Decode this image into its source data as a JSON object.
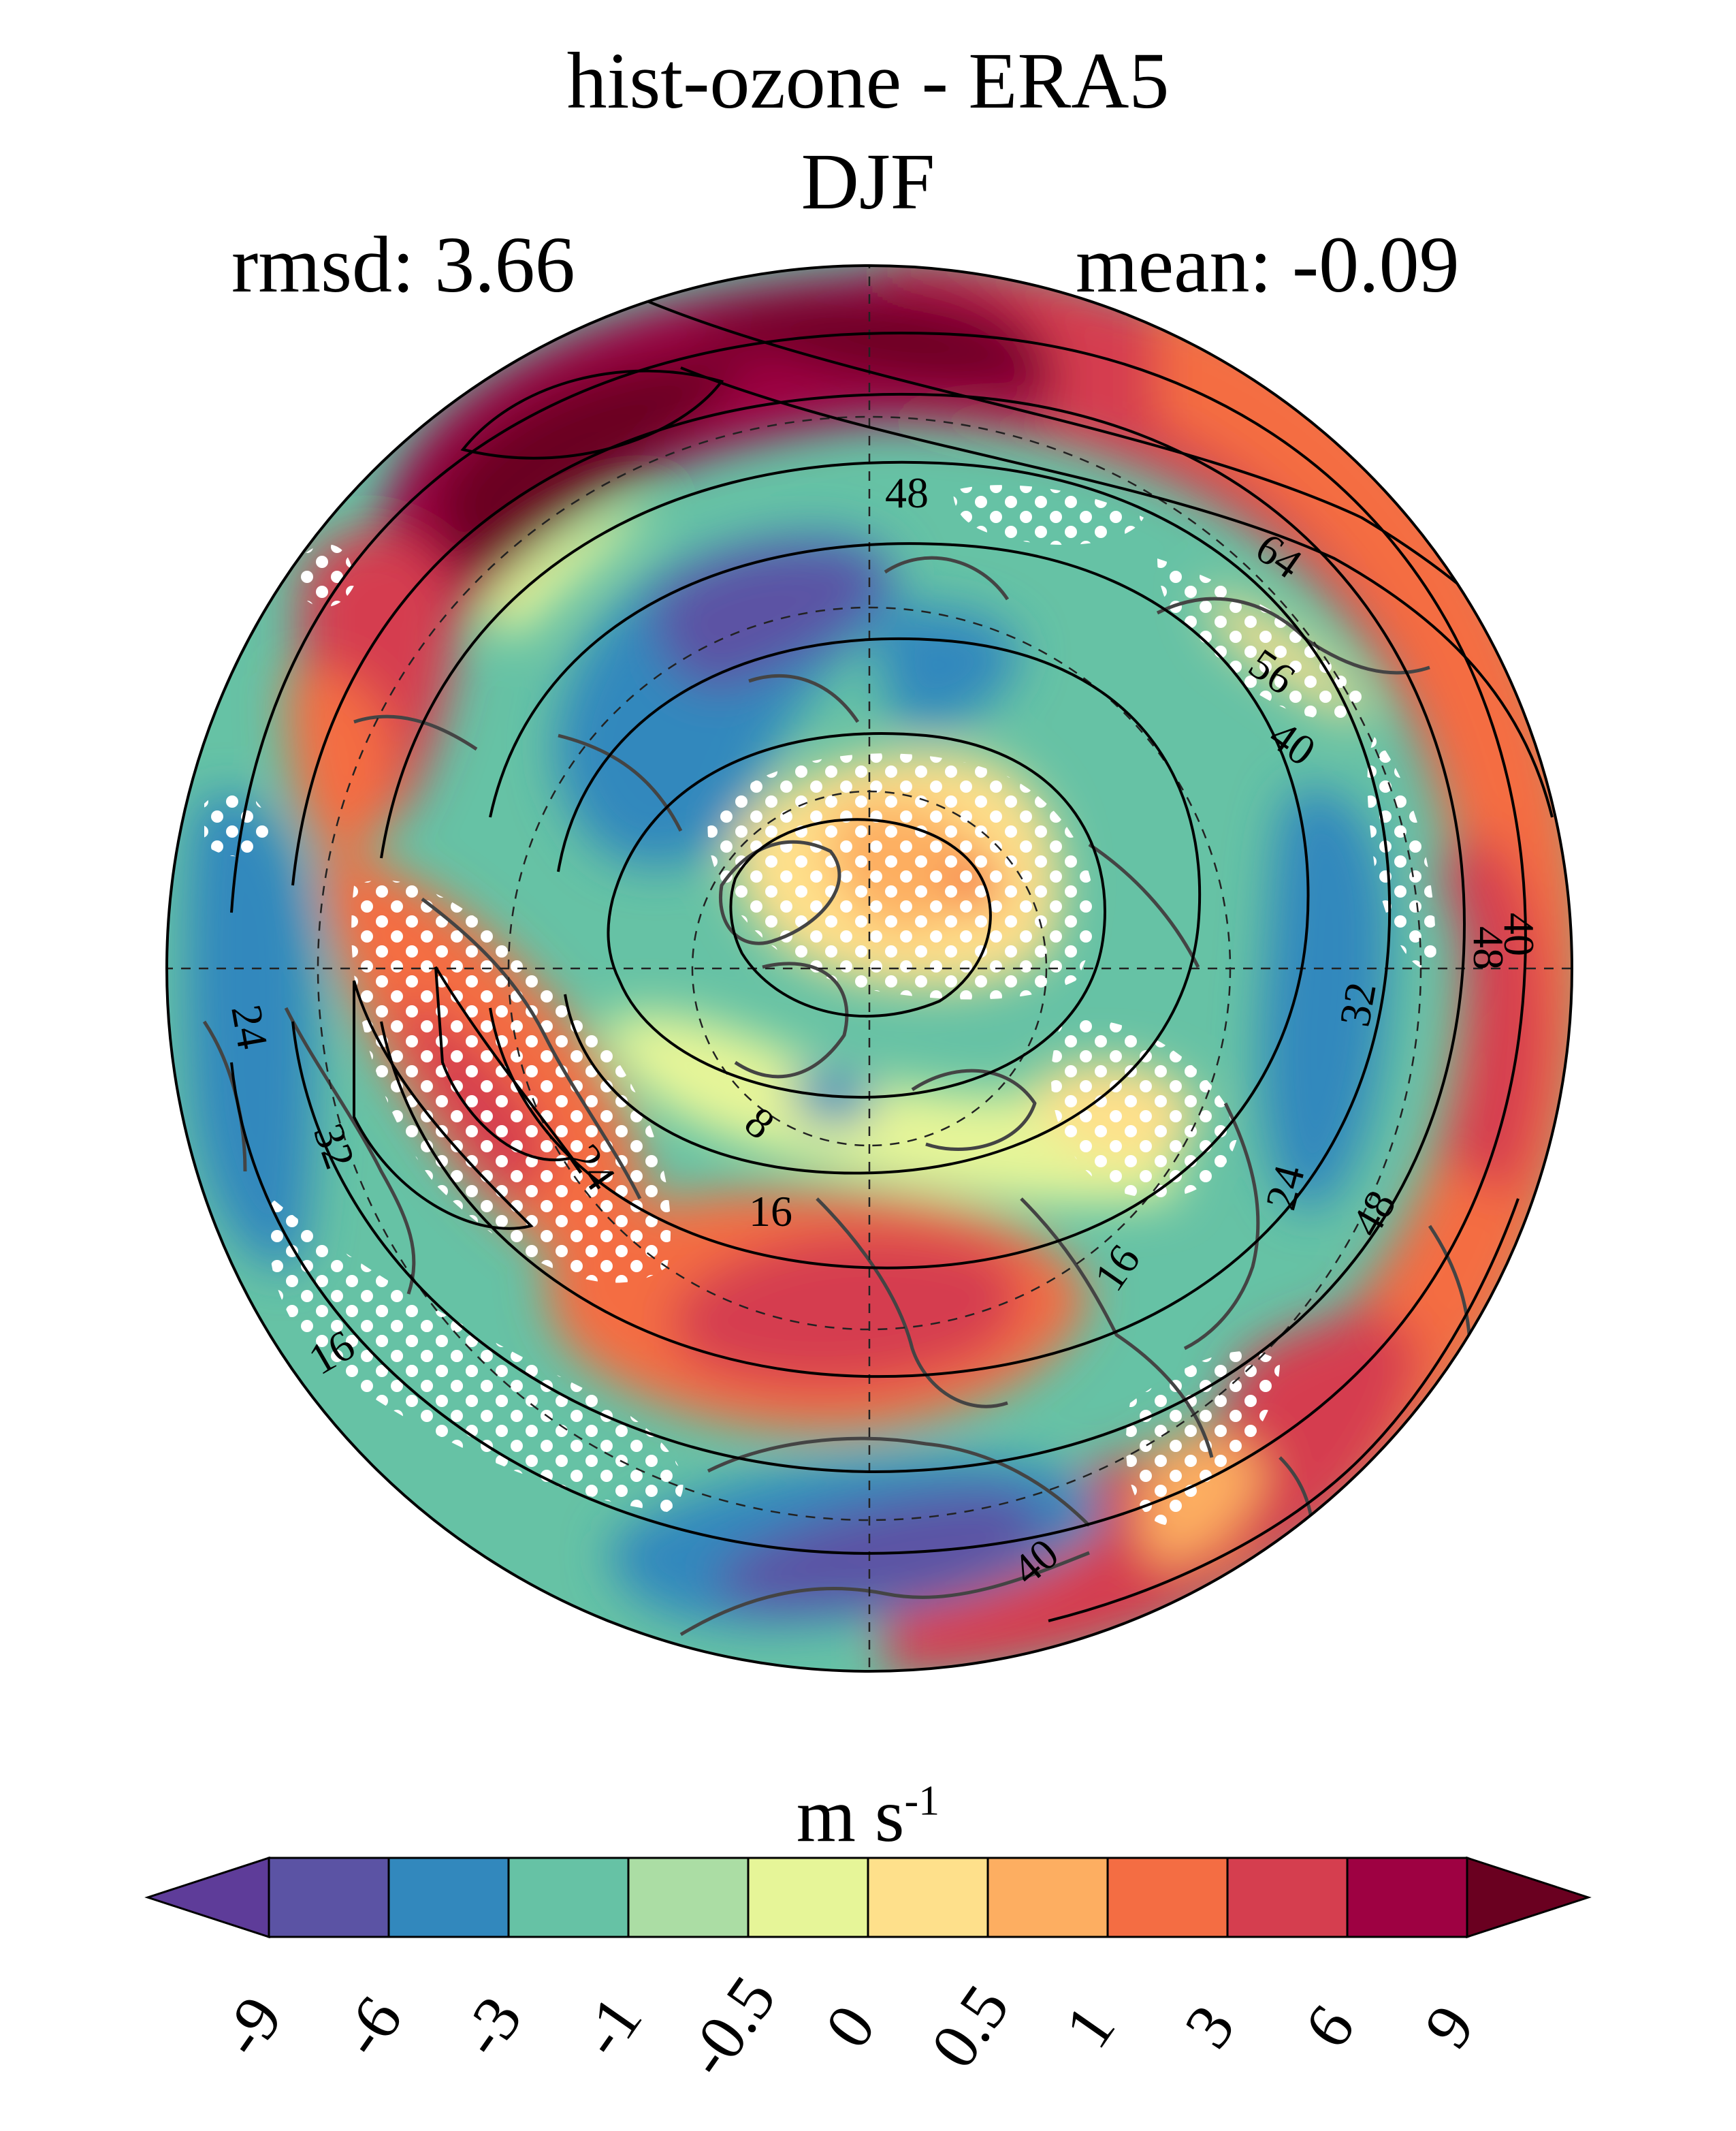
{
  "title": {
    "line1": "hist-ozone - ERA5",
    "line2": "DJF"
  },
  "stats": {
    "rmsd": "rmsd: 3.66",
    "mean": "mean: -0.09"
  },
  "colorbar": {
    "units_base": "m s",
    "units_exp": "-1",
    "levels": [
      "-9",
      "-6",
      "-3",
      "-1",
      "-0.5",
      "0",
      "0.5",
      "1",
      "3",
      "6",
      "9"
    ],
    "colors": [
      "#5e3c99",
      "#5b53a4",
      "#3288bd",
      "#66c2a5",
      "#abdda4",
      "#e6f598",
      "#fee08b",
      "#fdae61",
      "#f46d43",
      "#d53e4f",
      "#9e0142",
      "#6a0020"
    ]
  },
  "map": {
    "projection": "north polar stereographic",
    "stippling": "white dots",
    "contour_labels": [
      "48",
      "64",
      "56",
      "40",
      "40",
      "48",
      "32",
      "24",
      "48",
      "16",
      "40",
      "24",
      "32",
      "24",
      "8",
      "16",
      "16"
    ],
    "colors": {
      "ocean_bg": "#66c2a5",
      "coast": "#444444",
      "contour": "#000000",
      "stipple": "#ffffff"
    }
  }
}
